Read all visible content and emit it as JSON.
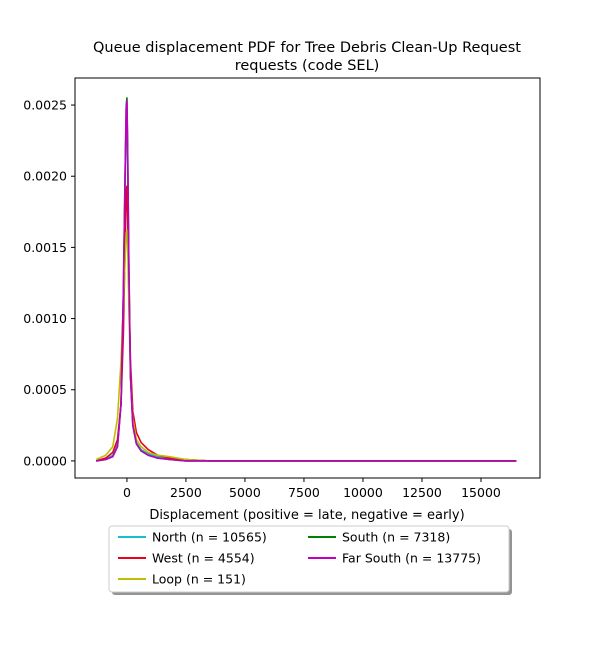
{
  "chart_data": {
    "type": "line",
    "title_line1": "Queue displacement PDF for Tree Debris Clean-Up Request",
    "title_line2": "requests (code SEL)",
    "xlabel": "Displacement (positive = late, negative = early)",
    "ylabel": "",
    "xlim": [
      -2200,
      17500
    ],
    "ylim": [
      -0.00012,
      0.00269
    ],
    "x_ticks": [
      0,
      2500,
      5000,
      7500,
      10000,
      12500,
      15000
    ],
    "x_tick_labels": [
      "0",
      "2500",
      "5000",
      "7500",
      "10000",
      "12500",
      "15000"
    ],
    "y_ticks": [
      0.0,
      0.0005,
      0.001,
      0.0015,
      0.002,
      0.0025
    ],
    "y_tick_labels": [
      "0.0000",
      "0.0005",
      "0.0010",
      "0.0015",
      "0.0020",
      "0.0025"
    ],
    "grid": false,
    "legend_position": "below",
    "series": [
      {
        "name": "North (n = 10565)",
        "color": "#17becf",
        "x": [
          -1300,
          -900,
          -600,
          -400,
          -250,
          -150,
          -80,
          -30,
          0,
          30,
          80,
          150,
          250,
          400,
          600,
          900,
          1300,
          1800,
          2500,
          3500,
          5000,
          8000,
          12000,
          16500
        ],
        "y": [
          0.0,
          1e-05,
          4e-05,
          0.00012,
          0.0004,
          0.0011,
          0.0019,
          0.0024,
          0.00245,
          0.0021,
          0.0013,
          0.0006,
          0.00025,
          0.00013,
          8e-05,
          5e-05,
          3e-05,
          1e-05,
          1e-05,
          0.0,
          0.0,
          0.0,
          0.0,
          0.0
        ]
      },
      {
        "name": "West (n = 4554)",
        "color": "#e8001c",
        "x": [
          -1300,
          -900,
          -600,
          -400,
          -250,
          -150,
          -80,
          -30,
          0,
          30,
          80,
          150,
          250,
          400,
          600,
          900,
          1300,
          1800,
          2500,
          3500,
          5000,
          8000,
          12000,
          16500
        ],
        "y": [
          0.0,
          2e-05,
          6e-05,
          0.00015,
          0.0004,
          0.0009,
          0.0015,
          0.0019,
          0.00193,
          0.0017,
          0.0012,
          0.0007,
          0.00035,
          0.0002,
          0.00013,
          8e-05,
          4e-05,
          2e-05,
          1e-05,
          0.0,
          0.0,
          0.0,
          0.0,
          0.0
        ]
      },
      {
        "name": "Loop (n = 151)",
        "color": "#bfbf00",
        "x": [
          -1300,
          -900,
          -600,
          -400,
          -250,
          -150,
          -80,
          -30,
          0,
          30,
          80,
          150,
          250,
          400,
          600,
          900,
          1300,
          1800,
          2500,
          3500,
          5000,
          8000,
          12000,
          16500
        ],
        "y": [
          1e-05,
          4e-05,
          0.0001,
          0.0003,
          0.0007,
          0.0011,
          0.0014,
          0.0016,
          0.00162,
          0.0015,
          0.0011,
          0.0006,
          0.0003,
          0.00015,
          0.0001,
          6e-05,
          4e-05,
          3e-05,
          1e-05,
          0.0,
          0.0,
          0.0,
          0.0,
          0.0
        ]
      },
      {
        "name": "South (n = 7318)",
        "color": "#008000",
        "x": [
          -1300,
          -900,
          -600,
          -400,
          -250,
          -150,
          -80,
          -30,
          0,
          30,
          80,
          150,
          250,
          400,
          600,
          900,
          1300,
          1800,
          2500,
          3500,
          5000,
          8000,
          12000,
          16500
        ],
        "y": [
          0.0,
          1e-05,
          3e-05,
          0.0001,
          0.0004,
          0.0012,
          0.002,
          0.0025,
          0.00255,
          0.0022,
          0.0014,
          0.0006,
          0.00025,
          0.00012,
          7e-05,
          4e-05,
          2e-05,
          1e-05,
          0.0,
          0.0,
          0.0,
          0.0,
          0.0,
          0.0
        ]
      },
      {
        "name": "Far South (n = 13775)",
        "color": "#bf00bf",
        "x": [
          -1300,
          -900,
          -600,
          -400,
          -250,
          -150,
          -80,
          -30,
          0,
          30,
          80,
          150,
          250,
          400,
          600,
          900,
          1300,
          1800,
          2500,
          3500,
          5000,
          8000,
          12000,
          16500
        ],
        "y": [
          0.0,
          1e-05,
          3e-05,
          0.0001,
          0.0004,
          0.0012,
          0.002,
          0.00248,
          0.00253,
          0.0022,
          0.0014,
          0.0006,
          0.00025,
          0.00012,
          7e-05,
          4e-05,
          2e-05,
          1e-05,
          0.0,
          0.0,
          0.0,
          0.0,
          0.0,
          0.0
        ]
      }
    ]
  }
}
